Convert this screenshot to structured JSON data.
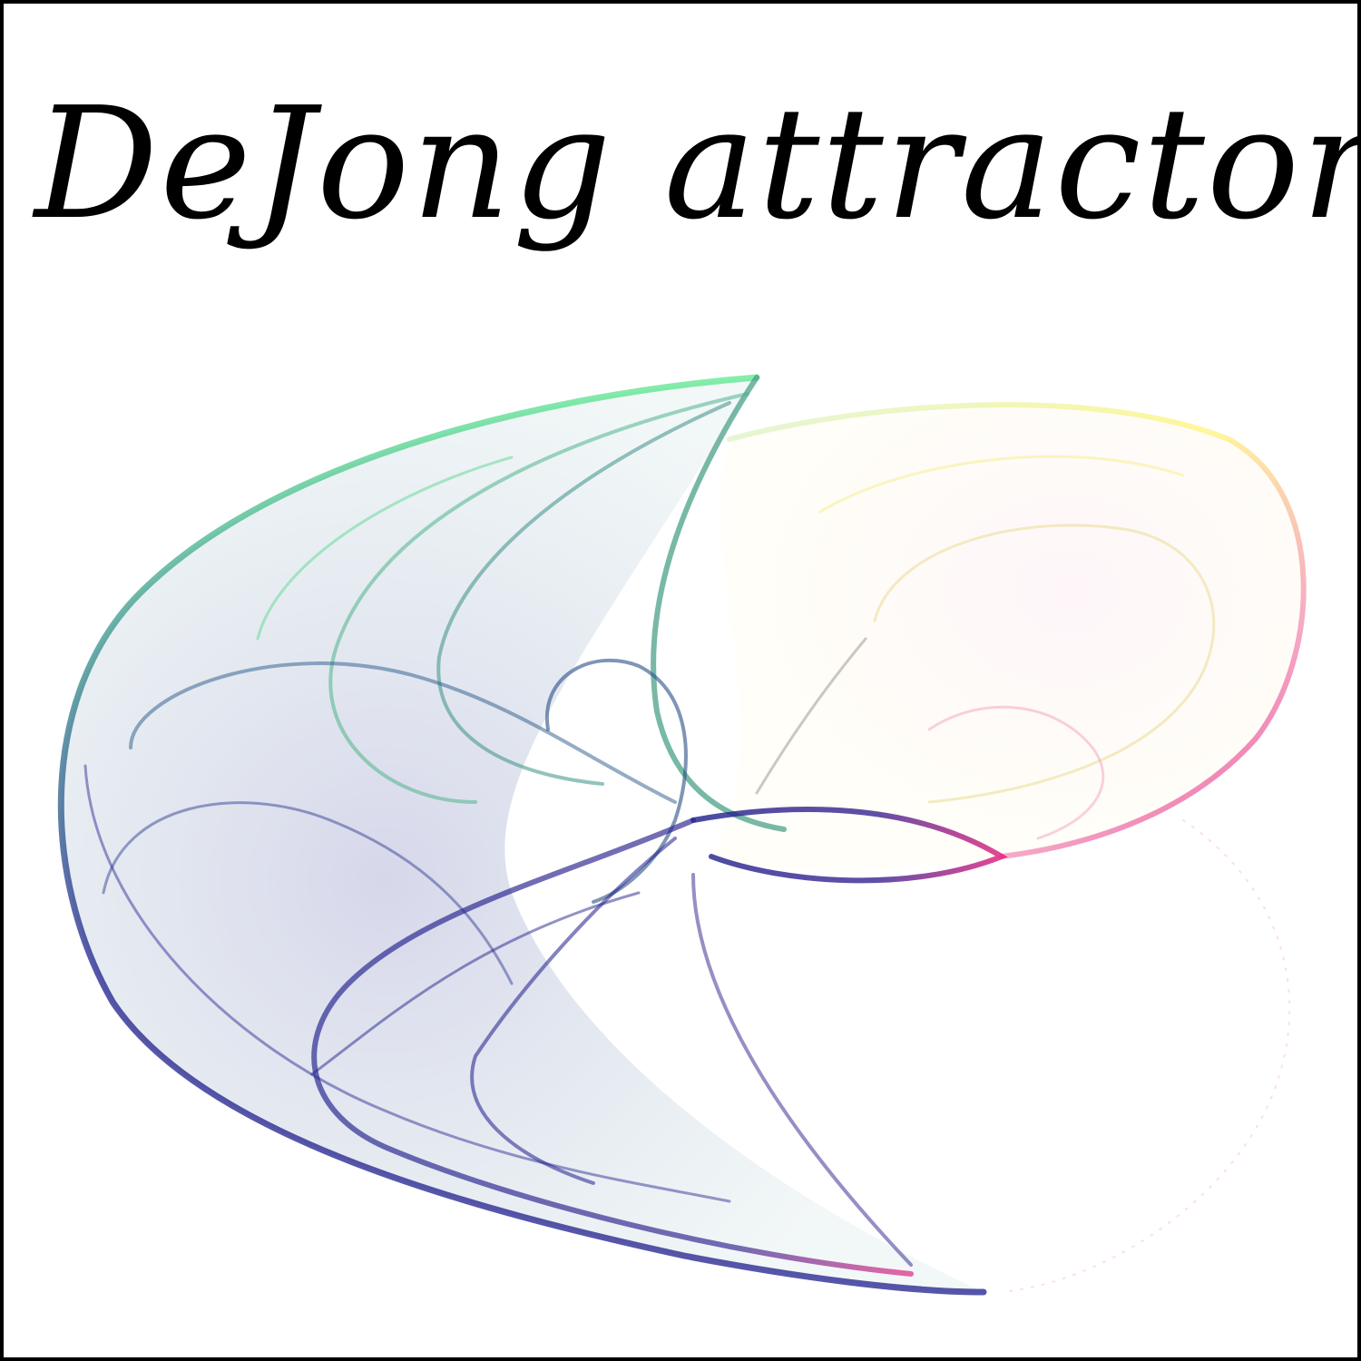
{
  "title": "DeJong attractor",
  "palette": {
    "green": "#5be88f",
    "teal": "#2f7f8a",
    "navy": "#1e1e8c",
    "magenta": "#e0187a",
    "pink": "#f28ab4",
    "yellow": "#fff47a",
    "border": "#000000",
    "background": "#ffffff"
  }
}
